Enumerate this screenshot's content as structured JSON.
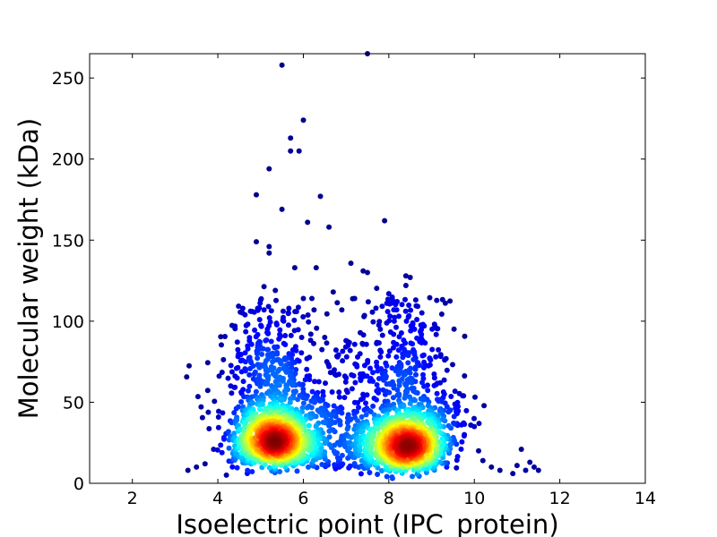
{
  "chart_data": {
    "type": "scatter",
    "title": "",
    "xlabel": "Isoelectric point (IPC_protein)",
    "ylabel": "Molecular weight (kDa)",
    "xlim": [
      1,
      14
    ],
    "ylim": [
      0,
      265
    ],
    "xticks": [
      2,
      4,
      6,
      8,
      10,
      12,
      14
    ],
    "yticks": [
      0,
      50,
      100,
      150,
      200,
      250
    ],
    "grid": false,
    "legend": "none",
    "color_encoding": "point density (jet colormap: blue = low, red = high)",
    "colormap": [
      "#00007f",
      "#0000ff",
      "#007fff",
      "#00ffff",
      "#7fff7f",
      "#ffff00",
      "#ff7f00",
      "#ff0000",
      "#7f0000"
    ],
    "clusters": [
      {
        "center_x": 5.3,
        "center_y": 24,
        "peak_density": "high"
      },
      {
        "center_x": 8.4,
        "center_y": 21,
        "peak_density": "high"
      }
    ],
    "outliers": [
      {
        "x": 5.5,
        "y": 258
      },
      {
        "x": 7.5,
        "y": 265
      },
      {
        "x": 6.0,
        "y": 224
      },
      {
        "x": 5.7,
        "y": 213
      },
      {
        "x": 5.9,
        "y": 205
      },
      {
        "x": 5.7,
        "y": 205
      },
      {
        "x": 5.2,
        "y": 194
      },
      {
        "x": 4.9,
        "y": 178
      },
      {
        "x": 6.4,
        "y": 177
      },
      {
        "x": 5.5,
        "y": 169
      },
      {
        "x": 6.1,
        "y": 161
      },
      {
        "x": 7.9,
        "y": 162
      },
      {
        "x": 6.6,
        "y": 158
      },
      {
        "x": 4.9,
        "y": 149
      },
      {
        "x": 5.2,
        "y": 146
      },
      {
        "x": 5.2,
        "y": 142
      },
      {
        "x": 6.3,
        "y": 133
      },
      {
        "x": 5.8,
        "y": 133
      },
      {
        "x": 7.4,
        "y": 131
      },
      {
        "x": 7.5,
        "y": 130
      },
      {
        "x": 8.4,
        "y": 128
      },
      {
        "x": 8.5,
        "y": 127
      },
      {
        "x": 8.4,
        "y": 122
      },
      {
        "x": 6.7,
        "y": 118
      },
      {
        "x": 6.0,
        "y": 114
      },
      {
        "x": 6.2,
        "y": 114
      },
      {
        "x": 7.2,
        "y": 114
      },
      {
        "x": 8.0,
        "y": 117
      },
      {
        "x": 7.7,
        "y": 108
      },
      {
        "x": 6.9,
        "y": 107
      },
      {
        "x": 5.0,
        "y": 113
      },
      {
        "x": 4.8,
        "y": 106
      },
      {
        "x": 4.3,
        "y": 60
      },
      {
        "x": 3.3,
        "y": 8
      },
      {
        "x": 3.5,
        "y": 10
      },
      {
        "x": 3.7,
        "y": 12
      },
      {
        "x": 3.9,
        "y": 21
      },
      {
        "x": 4.2,
        "y": 5
      },
      {
        "x": 10.0,
        "y": 35
      },
      {
        "x": 10.1,
        "y": 20
      },
      {
        "x": 10.2,
        "y": 14
      },
      {
        "x": 10.4,
        "y": 10
      },
      {
        "x": 10.6,
        "y": 8
      },
      {
        "x": 10.9,
        "y": 6
      },
      {
        "x": 11.0,
        "y": 11
      },
      {
        "x": 11.1,
        "y": 21
      },
      {
        "x": 11.2,
        "y": 8
      },
      {
        "x": 11.3,
        "y": 13
      },
      {
        "x": 11.4,
        "y": 10
      },
      {
        "x": 11.5,
        "y": 8
      },
      {
        "x": 9.7,
        "y": 36
      },
      {
        "x": 9.3,
        "y": 55
      },
      {
        "x": 9.2,
        "y": 62
      },
      {
        "x": 8.8,
        "y": 98
      },
      {
        "x": 8.6,
        "y": 95
      },
      {
        "x": 7.8,
        "y": 95
      },
      {
        "x": 6.5,
        "y": 90
      },
      {
        "x": 6.8,
        "y": 78
      },
      {
        "x": 6.6,
        "y": 72
      },
      {
        "x": 7.0,
        "y": 65
      }
    ]
  }
}
